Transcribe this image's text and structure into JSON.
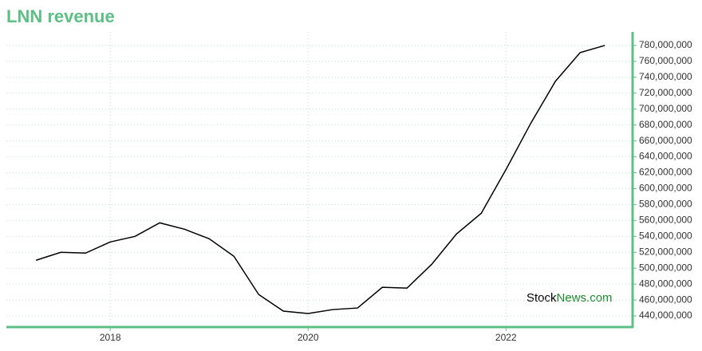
{
  "chart_data": {
    "type": "line",
    "title": "LNN revenue",
    "watermark": [
      "Stock",
      "News.com"
    ],
    "x": [
      2017.25,
      2017.5,
      2017.75,
      2018.0,
      2018.25,
      2018.5,
      2018.75,
      2019.0,
      2019.25,
      2019.5,
      2019.75,
      2020.0,
      2020.25,
      2020.5,
      2020.75,
      2021.0,
      2021.25,
      2021.5,
      2021.75,
      2022.0,
      2022.25,
      2022.5,
      2022.75,
      2023.0
    ],
    "series": [
      {
        "name": "LNN revenue",
        "color": "#000000",
        "values": [
          510000000,
          520000000,
          519000000,
          533000000,
          540000000,
          557000000,
          549000000,
          537000000,
          515000000,
          467000000,
          446000000,
          443000000,
          448000000,
          450000000,
          476000000,
          475000000,
          505000000,
          543000000,
          569000000,
          624000000,
          682000000,
          735000000,
          771000000,
          780000000
        ]
      }
    ],
    "xlim": [
      2016.95,
      2023.28
    ],
    "xticks": [
      2018,
      2020,
      2022
    ],
    "ylim": [
      426000000,
      797000000
    ],
    "yticks": [
      {
        "value": 440000000,
        "label": "440,000,000"
      },
      {
        "value": 460000000,
        "label": "460,000,000"
      },
      {
        "value": 480000000,
        "label": "480,000,000"
      },
      {
        "value": 500000000,
        "label": "500,000,000"
      },
      {
        "value": 520000000,
        "label": "520,000,000"
      },
      {
        "value": 540000000,
        "label": "540,000,000"
      },
      {
        "value": 560000000,
        "label": "560,000,000"
      },
      {
        "value": 580000000,
        "label": "580,000,000"
      },
      {
        "value": 600000000,
        "label": "600,000,000"
      },
      {
        "value": 620000000,
        "label": "620,000,000"
      },
      {
        "value": 640000000,
        "label": "640,000,000"
      },
      {
        "value": 660000000,
        "label": "660,000,000"
      },
      {
        "value": 680000000,
        "label": "680,000,000"
      },
      {
        "value": 700000000,
        "label": "700,000,000"
      },
      {
        "value": 720000000,
        "label": "720,000,000"
      },
      {
        "value": 740000000,
        "label": "740,000,000"
      },
      {
        "value": 760000000,
        "label": "760,000,000"
      },
      {
        "value": 780000000,
        "label": "780,000,000"
      }
    ],
    "grid": true,
    "accent_color": "#5cbf84"
  }
}
